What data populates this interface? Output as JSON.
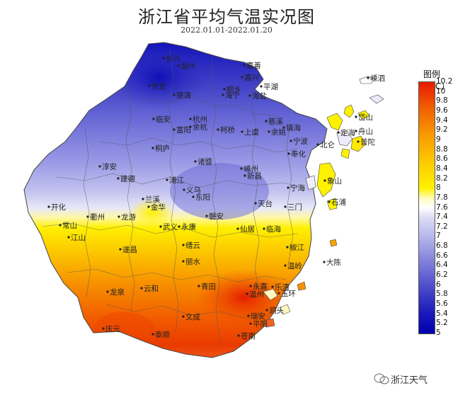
{
  "title": "浙江省平均气温实况图",
  "subtitle": "2022.01.01-2022.01.20",
  "legend": {
    "title": "图例（℃）",
    "labels": [
      "10.2",
      "10",
      "9.8",
      "9.6",
      "9.4",
      "9.2",
      "9",
      "8.8",
      "8.6",
      "8.4",
      "8.2",
      "8",
      "7.8",
      "7.6",
      "7.4",
      "7.2",
      "7",
      "6.8",
      "6.6",
      "6.4",
      "6.2",
      "6",
      "5.8",
      "5.6",
      "5.4",
      "5.2",
      "5"
    ],
    "colors": [
      "#e81a00",
      "#ea3300",
      "#ee4d00",
      "#f26600",
      "#f47c00",
      "#f79100",
      "#f9a400",
      "#fbb400",
      "#fdc600",
      "#fed500",
      "#fee300",
      "#fff200",
      "#fffcc0",
      "#ffffff",
      "#dcdcf6",
      "#c9c9f0",
      "#b6b6ea",
      "#a1a1e4",
      "#8c8cde",
      "#7878d8",
      "#6464d2",
      "#5050cc",
      "#3c3cc6",
      "#2a2ac0",
      "#1818ba",
      "#0c0cb4",
      "#0000ae"
    ]
  },
  "cities": [
    "嵊泗",
    "长兴",
    "湖州",
    "嘉善",
    "安吉",
    "嘉兴",
    "平湖",
    "桐乡",
    "海宁",
    "海盐",
    "德清",
    "岱山",
    "杭州",
    "舟山",
    "临安",
    "慈溪",
    "余杭",
    "镇海",
    "富阳",
    "柯桥",
    "上虞",
    "余姚",
    "定海",
    "普陀",
    "宁波",
    "北仑",
    "桐庐",
    "奉化",
    "淳安",
    "建德",
    "诸暨",
    "嵊州",
    "新昌",
    "浦江",
    "宁海",
    "象山",
    "兰溪",
    "义乌",
    "东阳",
    "开化",
    "衢州",
    "龙游",
    "金华",
    "天台",
    "磐安",
    "三门",
    "石浦",
    "常山",
    "武义",
    "永康",
    "仙居",
    "临海",
    "江山",
    "遂昌",
    "缙云",
    "椒江",
    "大陈",
    "青田",
    "永嘉",
    "温岭",
    "丽水",
    "龙泉",
    "云和",
    "乐清",
    "玉环",
    "温州",
    "瑞安",
    "洞头",
    "庆元",
    "文成",
    "平阳",
    "苍南",
    "泰顺"
  ],
  "watermark": "浙江天气"
}
